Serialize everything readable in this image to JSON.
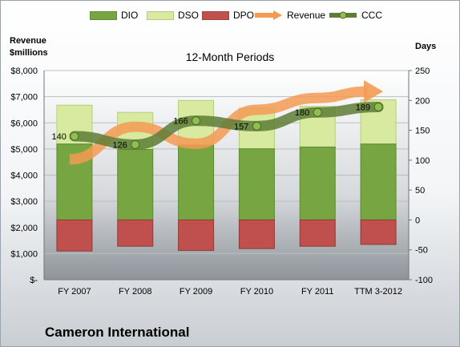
{
  "chart_data": {
    "type": "bar",
    "title": "12-Month Periods",
    "company": "Cameron International",
    "left_axis_label": [
      "Revenue",
      "$millions"
    ],
    "right_axis_label": "Days",
    "categories": [
      "FY 2007",
      "FY 2008",
      "FY 2009",
      "FY 2010",
      "FY 2011",
      "TTM 3-2012"
    ],
    "left_ylim": [
      0,
      8000
    ],
    "left_ticks": [
      "$-",
      "$1,000",
      "$2,000",
      "$3,000",
      "$4,000",
      "$5,000",
      "$6,000",
      "$7,000",
      "$8,000"
    ],
    "right_ylim": [
      -100,
      250
    ],
    "right_ticks": [
      "-100",
      "-50",
      "0",
      "50",
      "100",
      "150",
      "200",
      "250"
    ],
    "series": [
      {
        "name": "DIO",
        "type": "bar",
        "axis": "right",
        "color": "#77a541",
        "values": [
          127,
          118,
          125,
          119,
          122,
          127
        ]
      },
      {
        "name": "DSO",
        "type": "bar",
        "axis": "right",
        "color": "#d8ea9f",
        "values": [
          65,
          62,
          75,
          68,
          68,
          74
        ]
      },
      {
        "name": "DPO",
        "type": "bar",
        "axis": "right",
        "color": "#c0504d",
        "values": [
          -52,
          -44,
          -51,
          -48,
          -44,
          -41
        ]
      },
      {
        "name": "Revenue",
        "type": "arrow",
        "axis": "left",
        "color": "#f59a52",
        "values": [
          4600,
          5850,
          5200,
          6500,
          6950,
          7200
        ]
      },
      {
        "name": "CCC",
        "type": "line",
        "axis": "right",
        "color": "#5e7d36",
        "values": [
          140,
          126,
          166,
          157,
          180,
          189
        ]
      }
    ],
    "grid": true
  }
}
